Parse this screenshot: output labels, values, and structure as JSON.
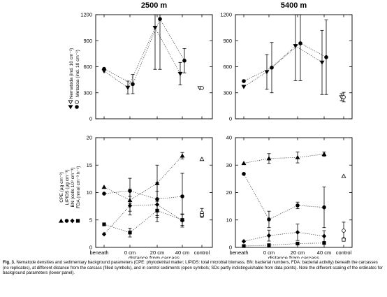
{
  "chart_data": [
    {
      "type": "scatter",
      "panel": "top",
      "site": "2500 m",
      "title": "2500 m",
      "ylim": [
        0,
        1200
      ],
      "yticks": [
        "0",
        "300",
        "600",
        "900",
        "1200"
      ],
      "categories": [
        "beneath",
        "0 cm",
        "20 cm",
        "40 cm",
        "control"
      ],
      "series": [
        {
          "name": "Nematoda (ind. 10 cm⁻²)",
          "marker": "triangle-down",
          "filled": true,
          "points": [
            {
              "x": "beneath",
              "y": 550
            },
            {
              "x": "0 cm",
              "y": 360,
              "sd": 75
            },
            {
              "x": "20 cm",
              "y": 1050,
              "sd": 480
            },
            {
              "x": "40 cm",
              "y": 520,
              "sd": 130
            }
          ]
        },
        {
          "name": "Metazoa (ind. 10 cm⁻²)",
          "marker": "circle",
          "filled": true,
          "points": [
            {
              "x": "beneath",
              "y": 575
            },
            {
              "x": "0 cm",
              "y": 400,
              "sd": 110
            },
            {
              "x": "20 cm",
              "y": 1150,
              "sd": 580
            },
            {
              "x": "40 cm",
              "y": 670,
              "sd": 140
            }
          ]
        },
        {
          "name": "Nematoda control",
          "marker": "triangle-down",
          "filled": false,
          "points": [
            {
              "x": "control",
              "y": 355
            }
          ]
        },
        {
          "name": "Metazoa control",
          "marker": "circle",
          "filled": false,
          "points": [
            {
              "x": "control",
              "y": 355
            }
          ]
        }
      ]
    },
    {
      "type": "scatter",
      "panel": "top",
      "site": "5400 m",
      "title": "5400 m",
      "ylim": [
        0,
        1200
      ],
      "yticks": [
        "0",
        "300",
        "600",
        "900",
        "1200"
      ],
      "categories": [
        "beneath",
        "0 cm",
        "20 cm",
        "40 cm",
        "control"
      ],
      "series": [
        {
          "name": "Nematoda (ind. 10 cm⁻²)",
          "marker": "triangle-down",
          "filled": true,
          "points": [
            {
              "x": "beneath",
              "y": 370
            },
            {
              "x": "0 cm",
              "y": 540,
              "sd": 200
            },
            {
              "x": "20 cm",
              "y": 840,
              "sd": 400
            },
            {
              "x": "40 cm",
              "y": 650,
              "sd": 370
            }
          ]
        },
        {
          "name": "Metazoa (ind. 10 cm⁻²)",
          "marker": "circle",
          "filled": true,
          "points": [
            {
              "x": "beneath",
              "y": 435
            },
            {
              "x": "0 cm",
              "y": 590,
              "sd": 290
            },
            {
              "x": "20 cm",
              "y": 870,
              "sd": 430
            },
            {
              "x": "40 cm",
              "y": 710,
              "sd": 430
            }
          ]
        },
        {
          "name": "Nematoda control",
          "marker": "triangle-down",
          "filled": false,
          "points": [
            {
              "x": "control",
              "y": 250,
              "sd": 40
            }
          ]
        },
        {
          "name": "Metazoa control",
          "marker": "circle",
          "filled": false,
          "points": [
            {
              "x": "control",
              "y": 250,
              "sd": 55
            }
          ]
        }
      ]
    },
    {
      "type": "scatter",
      "panel": "bottom",
      "site": "2500 m",
      "title": "",
      "ylim": [
        0,
        20
      ],
      "yticks": [
        "0",
        "5",
        "10",
        "15",
        "20"
      ],
      "categories": [
        "beneath",
        "0 cm",
        "20 cm",
        "40 cm",
        "control"
      ],
      "series": [
        {
          "name": "CPE (µg cm⁻³)",
          "marker": "triangle-up",
          "filled": true,
          "points": [
            {
              "x": "beneath",
              "y": 11
            },
            {
              "x": "0 cm",
              "y": 8.6,
              "sd": 2
            },
            {
              "x": "20 cm",
              "y": 11.7,
              "sd": 3.3
            },
            {
              "x": "40 cm",
              "y": 16.7,
              "sd": 0.6
            }
          ]
        },
        {
          "name": "LIPIDS (µg cm⁻³)",
          "marker": "circle",
          "filled": true,
          "points": [
            {
              "x": "beneath",
              "y": 9.8
            },
            {
              "x": "0 cm",
              "y": 10.3,
              "sd": 2.3
            },
            {
              "x": "20 cm",
              "y": 8.8,
              "sd": 3
            },
            {
              "x": "40 cm",
              "y": 9.3,
              "sd": 4.2
            }
          ]
        },
        {
          "name": "BN (cells 10⁹ cm⁻³)",
          "marker": "diamond",
          "filled": true,
          "points": [
            {
              "x": "beneath",
              "y": 2.4
            },
            {
              "x": "0 cm",
              "y": 7.6,
              "sd": 1.7
            },
            {
              "x": "20 cm",
              "y": 7.8,
              "sd": 2.4
            },
            {
              "x": "40 cm",
              "y": 4.9,
              "sd": 1.2
            }
          ]
        },
        {
          "name": "FDA (nmol cm⁻³ h⁻¹)",
          "marker": "square",
          "filled": true,
          "points": [
            {
              "x": "beneath",
              "y": 4.2
            },
            {
              "x": "0 cm",
              "y": 2.7,
              "sd": 0.8
            },
            {
              "x": "20 cm",
              "y": 6.7,
              "sd": 2
            },
            {
              "x": "40 cm",
              "y": 5,
              "sd": 1
            }
          ]
        },
        {
          "name": "CPE control",
          "marker": "triangle-up",
          "filled": false,
          "points": [
            {
              "x": "control",
              "y": 16.1
            }
          ]
        },
        {
          "name": "LIPIDS control",
          "marker": "circle",
          "filled": false,
          "points": [
            {
              "x": "control",
              "y": 6.3,
              "sd": 0.8
            }
          ]
        },
        {
          "name": "BN control",
          "marker": "diamond",
          "filled": false,
          "points": [
            {
              "x": "control",
              "y": 5.8
            }
          ]
        },
        {
          "name": "FDA control",
          "marker": "square",
          "filled": false,
          "points": [
            {
              "x": "control",
              "y": 5.9
            }
          ]
        }
      ]
    },
    {
      "type": "scatter",
      "panel": "bottom",
      "site": "5400 m",
      "title": "",
      "ylim": [
        0,
        40
      ],
      "yticks": [
        "0",
        "10",
        "20",
        "30",
        "40"
      ],
      "categories": [
        "beneath",
        "0 cm",
        "20 cm",
        "40 cm",
        "control"
      ],
      "series": [
        {
          "name": "CPE (µg cm⁻³)",
          "marker": "triangle-up",
          "filled": true,
          "points": [
            {
              "x": "beneath",
              "y": 30.7
            },
            {
              "x": "0 cm",
              "y": 32.4,
              "sd": 1.8
            },
            {
              "x": "20 cm",
              "y": 32.8,
              "sd": 2
            },
            {
              "x": "40 cm",
              "y": 34,
              "sd": 0.8
            }
          ]
        },
        {
          "name": "LIPIDS (µg cm⁻³)",
          "marker": "circle",
          "filled": true,
          "points": [
            {
              "x": "beneath",
              "y": 26.8
            },
            {
              "x": "0 cm",
              "y": 10.2,
              "sd": 3
            },
            {
              "x": "20 cm",
              "y": 15.3,
              "sd": 1.2
            },
            {
              "x": "40 cm",
              "y": 14.6,
              "sd": 7.4
            }
          ]
        },
        {
          "name": "BN (cells 10⁹ cm⁻³)",
          "marker": "diamond",
          "filled": true,
          "points": [
            {
              "x": "beneath",
              "y": 2.2
            },
            {
              "x": "0 cm",
              "y": 4.3,
              "sd": 2
            },
            {
              "x": "20 cm",
              "y": 5.5,
              "sd": 3
            },
            {
              "x": "40 cm",
              "y": 4.1,
              "sd": 2
            }
          ]
        },
        {
          "name": "FDA (nmol cm⁻³ h⁻¹)",
          "marker": "square",
          "filled": true,
          "points": [
            {
              "x": "beneath",
              "y": 0.5
            },
            {
              "x": "0 cm",
              "y": 0.8
            },
            {
              "x": "20 cm",
              "y": 1.4
            },
            {
              "x": "40 cm",
              "y": 1.6
            }
          ]
        },
        {
          "name": "CPE control",
          "marker": "triangle-up",
          "filled": false,
          "points": [
            {
              "x": "control",
              "y": 26
            }
          ]
        },
        {
          "name": "LIPIDS control",
          "marker": "circle",
          "filled": false,
          "points": [
            {
              "x": "control",
              "y": 6.1,
              "sd": 3.1
            }
          ]
        },
        {
          "name": "BN control",
          "marker": "diamond",
          "filled": false,
          "points": [
            {
              "x": "control",
              "y": 3.1
            }
          ]
        },
        {
          "name": "FDA control",
          "marker": "square",
          "filled": false,
          "points": [
            {
              "x": "control",
              "y": 2.8
            }
          ]
        }
      ]
    }
  ],
  "figure": {
    "top_labels": {
      "nematoda": "Nematoda (ind. 10 cm⁻²)",
      "metazoa": "Metazoa (ind. 10 cm⁻²)"
    },
    "bottom_labels": {
      "cpe": "CPE (µg cm⁻³)",
      "lipids": "LIPIDS (µg cm⁻³)",
      "bn": "BN (cells 10⁹ cm⁻³)",
      "fda": "FDA (nmol cm⁻³ h⁻¹)"
    },
    "xlabel": "distance from carcass"
  },
  "caption": {
    "label": "Fig. 3.",
    "text": "Nematode densities and sedimentary background parameters (CPE: phytodetrital matter; LIPIDS: total microbial biomass, BN: bacterial numbers, FDA: bacterial activity) beneath the carcasses (no replicates), at different distance from the carcass (filled symbols), and in control sediments (open symbols; SDs partly indistinguishable from data points). Note the different scaling of the ordinates for background parameters (lower panel)."
  }
}
